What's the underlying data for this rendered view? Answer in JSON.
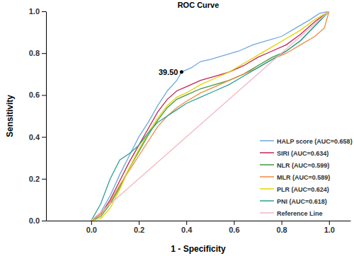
{
  "chart_data": {
    "type": "line",
    "title": "ROC Curve",
    "x_label": "1 - Specificity",
    "y_label": "Sensitivity",
    "xlim": [
      -0.19,
      1.09
    ],
    "ylim": [
      0,
      1
    ],
    "xticks": [
      {
        "value": 0,
        "label": "0.0"
      },
      {
        "value": 0.2,
        "label": "0.2"
      },
      {
        "value": 0.4,
        "label": "0.4"
      },
      {
        "value": 0.6,
        "label": "0.6"
      },
      {
        "value": 0.8,
        "label": "0.8"
      },
      {
        "value": 1,
        "label": "1.0"
      }
    ],
    "yticks": [
      {
        "value": 0,
        "label": "0.0"
      },
      {
        "value": 0.2,
        "label": "0.2"
      },
      {
        "value": 0.4,
        "label": "0.4"
      },
      {
        "value": 0.6,
        "label": "0.6"
      },
      {
        "value": 0.8,
        "label": "0.8"
      },
      {
        "value": 1,
        "label": "1.0"
      }
    ],
    "grid": false,
    "legend": "lower right",
    "series": [
      {
        "name": "HALP score (AUC=0.658)",
        "color": "#6fa8e0",
        "line_style": "solid",
        "x": [
          0,
          0.04,
          0.08,
          0.12,
          0.16,
          0.2,
          0.24,
          0.28,
          0.32,
          0.36,
          0.38,
          0.42,
          0.46,
          0.5,
          0.56,
          0.62,
          0.68,
          0.74,
          0.8,
          0.86,
          0.92,
          0.96,
          1
        ],
        "values": [
          0,
          0.04,
          0.12,
          0.22,
          0.31,
          0.4,
          0.47,
          0.55,
          0.62,
          0.67,
          0.71,
          0.73,
          0.76,
          0.77,
          0.79,
          0.81,
          0.84,
          0.86,
          0.88,
          0.92,
          0.96,
          0.99,
          1
        ]
      },
      {
        "name": "SIRI (AUC=0.634)",
        "color": "#c0245a",
        "line_style": "solid",
        "x": [
          0,
          0.04,
          0.08,
          0.12,
          0.16,
          0.2,
          0.24,
          0.28,
          0.32,
          0.36,
          0.4,
          0.46,
          0.52,
          0.58,
          0.64,
          0.7,
          0.76,
          0.82,
          0.88,
          0.94,
          1
        ],
        "values": [
          0,
          0.03,
          0.1,
          0.19,
          0.28,
          0.36,
          0.44,
          0.52,
          0.58,
          0.62,
          0.64,
          0.67,
          0.69,
          0.71,
          0.74,
          0.78,
          0.81,
          0.84,
          0.89,
          0.95,
          1
        ]
      },
      {
        "name": "NLR (AUC=0.599)",
        "color": "#3f9a3f",
        "line_style": "solid",
        "x": [
          0,
          0.04,
          0.08,
          0.12,
          0.16,
          0.2,
          0.24,
          0.28,
          0.32,
          0.36,
          0.4,
          0.46,
          0.52,
          0.58,
          0.64,
          0.7,
          0.76,
          0.82,
          0.88,
          0.94,
          1
        ],
        "values": [
          0,
          0.02,
          0.08,
          0.16,
          0.25,
          0.33,
          0.41,
          0.48,
          0.54,
          0.58,
          0.6,
          0.63,
          0.65,
          0.67,
          0.7,
          0.74,
          0.78,
          0.81,
          0.86,
          0.93,
          1
        ]
      },
      {
        "name": "MLR (AUC=0.589)",
        "color": "#f08a3c",
        "line_style": "solid",
        "x": [
          0,
          0.04,
          0.08,
          0.12,
          0.16,
          0.2,
          0.24,
          0.28,
          0.32,
          0.36,
          0.4,
          0.46,
          0.52,
          0.58,
          0.64,
          0.7,
          0.76,
          0.82,
          0.88,
          0.94,
          0.98,
          1
        ],
        "values": [
          0,
          0.03,
          0.09,
          0.17,
          0.24,
          0.31,
          0.38,
          0.45,
          0.5,
          0.54,
          0.57,
          0.61,
          0.64,
          0.67,
          0.7,
          0.73,
          0.77,
          0.8,
          0.84,
          0.88,
          0.92,
          1
        ]
      },
      {
        "name": "PLR (AUC=0.624)",
        "color": "#e3d400",
        "line_style": "solid",
        "x": [
          0,
          0.04,
          0.08,
          0.12,
          0.16,
          0.2,
          0.24,
          0.28,
          0.32,
          0.36,
          0.4,
          0.46,
          0.52,
          0.58,
          0.64,
          0.7,
          0.76,
          0.82,
          0.88,
          0.94,
          1
        ],
        "values": [
          0,
          0.01,
          0.06,
          0.15,
          0.25,
          0.34,
          0.42,
          0.49,
          0.55,
          0.59,
          0.61,
          0.65,
          0.68,
          0.71,
          0.75,
          0.79,
          0.83,
          0.87,
          0.91,
          0.96,
          1
        ]
      },
      {
        "name": "PNI (AUC=0.618)",
        "color": "#2aa198",
        "line_style": "solid",
        "x": [
          0,
          0.04,
          0.08,
          0.12,
          0.16,
          0.2,
          0.24,
          0.28,
          0.32,
          0.36,
          0.4,
          0.46,
          0.52,
          0.58,
          0.64,
          0.7,
          0.76,
          0.82,
          0.88,
          0.94,
          1
        ],
        "values": [
          0,
          0.08,
          0.2,
          0.29,
          0.32,
          0.36,
          0.42,
          0.47,
          0.5,
          0.53,
          0.56,
          0.59,
          0.62,
          0.65,
          0.69,
          0.73,
          0.77,
          0.81,
          0.86,
          0.93,
          1
        ]
      },
      {
        "name": "Reference Line",
        "color": "#f4b6c2",
        "line_style": "solid",
        "x": [
          0,
          1
        ],
        "values": [
          0,
          1
        ]
      }
    ],
    "annotations": [
      {
        "text": "39.50",
        "x": 0.38,
        "y": 0.71
      }
    ]
  }
}
